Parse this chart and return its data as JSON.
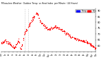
{
  "title_left": "Milwaukee Weather Outdoor Temp vs Heat Index per Minute (24 Hours)",
  "background_color": "#ffffff",
  "plot_bg_color": "#ffffff",
  "legend_temp_color": "#0000ff",
  "legend_hi_color": "#ff0000",
  "scatter_color": "#ff0000",
  "dot_size": 0.8,
  "ylim": [
    55,
    92
  ],
  "xlim": [
    0,
    1440
  ],
  "yticks": [
    60,
    65,
    70,
    75,
    80,
    85,
    90
  ],
  "vline1": 355,
  "vline2": 415,
  "seed": 42,
  "figsize": [
    1.6,
    0.87
  ],
  "dpi": 100
}
